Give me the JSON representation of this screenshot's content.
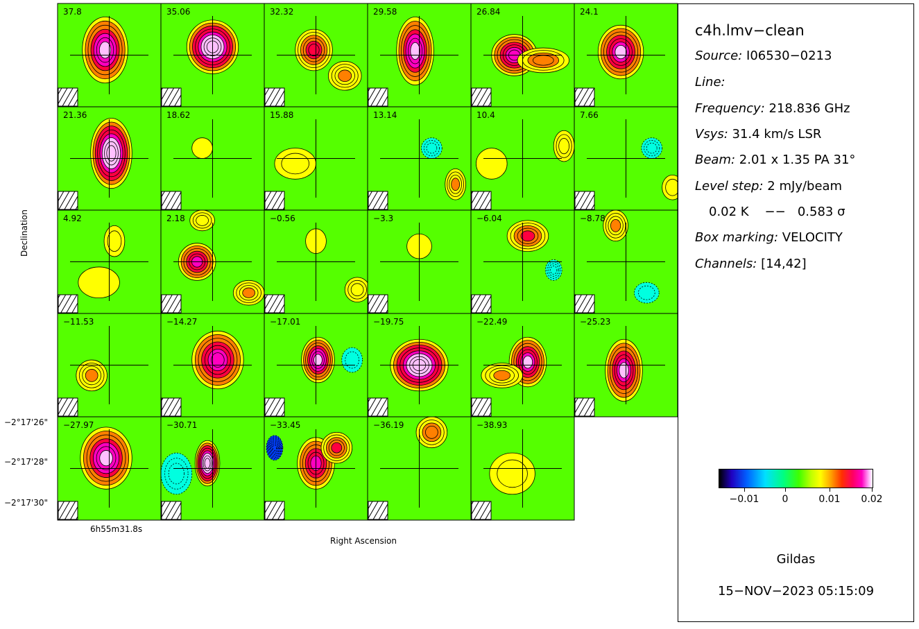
{
  "chart_data": {
    "type": "heatmap",
    "title": "c4h.lmv-clean",
    "xlabel": "Right Ascension",
    "ylabel": "Declination",
    "x_tick_label": "6h55m31.8s",
    "y_tick_labels": [
      "−2°17'26\"",
      "−2°17'28\"",
      "−2°17'30\""
    ],
    "colorbar": {
      "ticks": [
        "−0.01",
        "0",
        "0.01",
        "0.02"
      ],
      "range": [
        -0.015,
        0.02
      ]
    },
    "channels": [
      {
        "label": "37.8",
        "blobs": [
          [
            0.46,
            0.45,
            0.22,
            0.32,
            0.92
          ]
        ]
      },
      {
        "label": "35.06",
        "blobs": [
          [
            0.5,
            0.42,
            0.25,
            0.26,
            1.0
          ]
        ]
      },
      {
        "label": "32.32",
        "blobs": [
          [
            0.48,
            0.45,
            0.18,
            0.2,
            0.7
          ],
          [
            0.78,
            0.7,
            0.16,
            0.14,
            0.45
          ]
        ]
      },
      {
        "label": "29.58",
        "blobs": [
          [
            0.46,
            0.46,
            0.18,
            0.33,
            0.88
          ]
        ]
      },
      {
        "label": "26.84",
        "blobs": [
          [
            0.42,
            0.5,
            0.22,
            0.2,
            0.82
          ],
          [
            0.7,
            0.55,
            0.25,
            0.12,
            0.55
          ]
        ]
      },
      {
        "label": "24.1",
        "blobs": [
          [
            0.45,
            0.47,
            0.22,
            0.26,
            0.86
          ]
        ]
      },
      {
        "label": "21.36",
        "blobs": [
          [
            0.52,
            0.45,
            0.2,
            0.34,
            0.98
          ]
        ]
      },
      {
        "label": "18.62",
        "blobs": [
          [
            0.4,
            0.4,
            0.1,
            0.1,
            0.15
          ]
        ]
      },
      {
        "label": "15.88",
        "blobs": [
          [
            0.3,
            0.55,
            0.2,
            0.15,
            0.25
          ]
        ]
      },
      {
        "label": "13.14",
        "blobs": [
          [
            0.85,
            0.75,
            0.1,
            0.15,
            0.45
          ],
          [
            0.62,
            0.4,
            0.1,
            0.1,
            -0.35
          ]
        ]
      },
      {
        "label": "10.4",
        "blobs": [
          [
            0.9,
            0.38,
            0.1,
            0.15,
            0.4
          ],
          [
            0.2,
            0.55,
            0.15,
            0.15,
            0.15
          ]
        ]
      },
      {
        "label": "7.66",
        "blobs": [
          [
            0.95,
            0.78,
            0.1,
            0.12,
            0.3
          ],
          [
            0.75,
            0.4,
            0.1,
            0.1,
            -0.4
          ]
        ]
      },
      {
        "label": "4.92",
        "blobs": [
          [
            0.55,
            0.3,
            0.1,
            0.15,
            0.2
          ],
          [
            0.4,
            0.7,
            0.2,
            0.15,
            0.12
          ]
        ]
      },
      {
        "label": "2.18",
        "blobs": [
          [
            0.35,
            0.5,
            0.18,
            0.18,
            0.78
          ],
          [
            0.85,
            0.8,
            0.15,
            0.12,
            0.45
          ],
          [
            0.4,
            0.1,
            0.12,
            0.1,
            0.35
          ]
        ]
      },
      {
        "label": "−0.56",
        "blobs": [
          [
            0.9,
            0.77,
            0.12,
            0.12,
            0.4
          ],
          [
            0.5,
            0.3,
            0.1,
            0.12,
            0.15
          ]
        ]
      },
      {
        "label": "−3.3",
        "blobs": [
          [
            0.5,
            0.35,
            0.12,
            0.12,
            0.1
          ]
        ]
      },
      {
        "label": "−6.04",
        "blobs": [
          [
            0.55,
            0.25,
            0.2,
            0.15,
            0.68
          ],
          [
            0.8,
            0.58,
            0.08,
            0.1,
            -0.55
          ]
        ]
      },
      {
        "label": "−8.78",
        "blobs": [
          [
            0.4,
            0.15,
            0.12,
            0.15,
            0.48
          ],
          [
            0.7,
            0.8,
            0.12,
            0.1,
            -0.2
          ]
        ]
      },
      {
        "label": "−11.53",
        "blobs": [
          [
            0.33,
            0.6,
            0.15,
            0.15,
            0.48
          ]
        ]
      },
      {
        "label": "−14.27",
        "blobs": [
          [
            0.55,
            0.45,
            0.25,
            0.28,
            0.82
          ]
        ]
      },
      {
        "label": "−17.01",
        "blobs": [
          [
            0.52,
            0.45,
            0.16,
            0.22,
            0.9
          ],
          [
            0.85,
            0.45,
            0.1,
            0.12,
            -0.3
          ]
        ]
      },
      {
        "label": "−19.75",
        "blobs": [
          [
            0.5,
            0.5,
            0.28,
            0.25,
            1.0
          ]
        ]
      },
      {
        "label": "−22.49",
        "blobs": [
          [
            0.55,
            0.47,
            0.18,
            0.24,
            0.85
          ],
          [
            0.3,
            0.6,
            0.2,
            0.12,
            0.45
          ]
        ]
      },
      {
        "label": "−25.23",
        "blobs": [
          [
            0.48,
            0.55,
            0.18,
            0.3,
            0.85
          ]
        ]
      },
      {
        "label": "−27.97",
        "blobs": [
          [
            0.47,
            0.4,
            0.25,
            0.3,
            0.92
          ]
        ]
      },
      {
        "label": "−30.71",
        "blobs": [
          [
            0.45,
            0.45,
            0.12,
            0.22,
            0.98
          ],
          [
            0.15,
            0.55,
            0.15,
            0.2,
            -0.35
          ]
        ]
      },
      {
        "label": "−33.45",
        "blobs": [
          [
            0.5,
            0.45,
            0.18,
            0.25,
            0.8
          ],
          [
            0.7,
            0.3,
            0.15,
            0.15,
            0.65
          ],
          [
            0.1,
            0.3,
            0.08,
            0.12,
            -1.0
          ]
        ]
      },
      {
        "label": "−36.19",
        "blobs": [
          [
            0.62,
            0.15,
            0.15,
            0.15,
            0.55
          ]
        ]
      },
      {
        "label": "−38.93",
        "blobs": [
          [
            0.4,
            0.55,
            0.22,
            0.2,
            0.3
          ]
        ]
      }
    ]
  },
  "info": {
    "title": "c4h.lmv−clean",
    "source_key": "Source:",
    "source_val": "I06530−0213",
    "line_key": "Line:",
    "line_val": "",
    "frequency_key": "Frequency:",
    "frequency_val": "218.836 GHz",
    "vsys_key": "Vsys:",
    "vsys_val": "31.4 km/s LSR",
    "beam_key": "Beam:",
    "beam_val": "2.01 x 1.35 PA 31°",
    "level_key": "Level step:",
    "level_val": "2 mJy/beam",
    "level_extra": "0.02 K    −−   0.583 σ",
    "box_key": "Box marking:",
    "box_val": "VELOCITY",
    "channels_key": "Channels:",
    "channels_val": "[14,42]"
  },
  "footer": {
    "program": "Gildas",
    "timestamp": "15−NOV−2023 05:15:09"
  }
}
